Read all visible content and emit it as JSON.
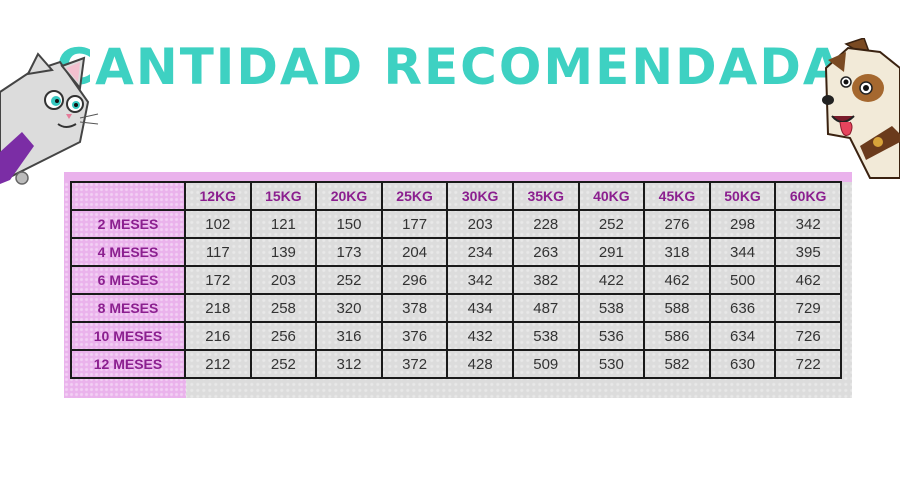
{
  "title": "CANTIDAD RECOMENDADA",
  "colors": {
    "title": "#3ed1c2",
    "header_text": "#8b1f8f",
    "header_bg": "#eab2ec",
    "cell_bg": "#dcdcdc"
  },
  "icons": {
    "left": "cartoon-cat-icon",
    "right": "cartoon-dog-icon"
  },
  "table": {
    "columns": [
      "12KG",
      "15KG",
      "20KG",
      "25KG",
      "30KG",
      "35KG",
      "40KG",
      "45KG",
      "50KG",
      "60KG"
    ],
    "rows": [
      {
        "label": "2 MESES",
        "values": [
          "102",
          "121",
          "150",
          "177",
          "203",
          "228",
          "252",
          "276",
          "298",
          "342"
        ]
      },
      {
        "label": "4 MESES",
        "values": [
          "117",
          "139",
          "173",
          "204",
          "234",
          "263",
          "291",
          "318",
          "344",
          "395"
        ]
      },
      {
        "label": "6 MESES",
        "values": [
          "172",
          "203",
          "252",
          "296",
          "342",
          "382",
          "422",
          "462",
          "500",
          "462"
        ]
      },
      {
        "label": "8 MESES",
        "values": [
          "218",
          "258",
          "320",
          "378",
          "434",
          "487",
          "538",
          "588",
          "636",
          "729"
        ]
      },
      {
        "label": "10 MESES",
        "values": [
          "216",
          "256",
          "316",
          "376",
          "432",
          "538",
          "536",
          "586",
          "634",
          "726"
        ]
      },
      {
        "label": "12 MESES",
        "values": [
          "212",
          "252",
          "312",
          "372",
          "428",
          "509",
          "530",
          "582",
          "630",
          "722"
        ]
      }
    ]
  }
}
